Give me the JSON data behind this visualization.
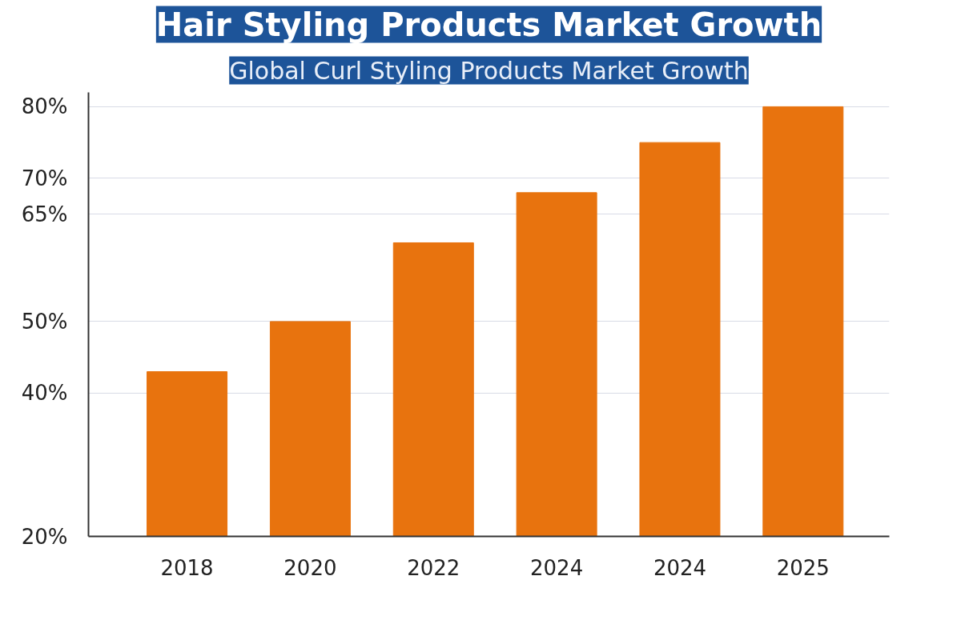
{
  "chart_data": {
    "type": "bar",
    "title": "Hair Styling Products Market Growth",
    "subtitle": "Global Curl Styling Products Market Growth",
    "categories": [
      "2018",
      "2020",
      "2022",
      "2024",
      "2024",
      "2025"
    ],
    "values": [
      43,
      50,
      61,
      68,
      75,
      80
    ],
    "color": "#e8730e",
    "ylim": [
      20,
      82
    ],
    "yticks": [
      {
        "value": 20,
        "label": "20%"
      },
      {
        "value": 40,
        "label": "40%"
      },
      {
        "value": 50,
        "label": "50%"
      },
      {
        "value": 65,
        "label": "65%"
      },
      {
        "value": 70,
        "label": "70%"
      },
      {
        "value": 80,
        "label": "80%"
      }
    ],
    "grid": "y"
  }
}
